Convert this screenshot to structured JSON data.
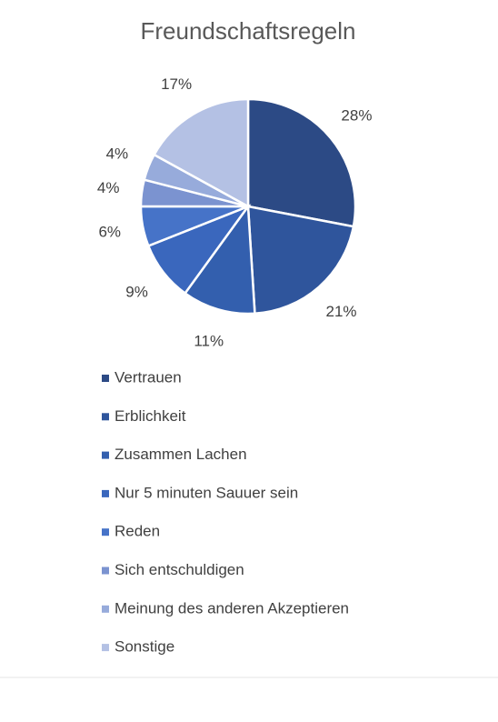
{
  "chart_data": {
    "type": "pie",
    "title": "Freundschaftsregeln",
    "categories": [
      "Vertrauen",
      "Erblichkeit",
      "Zusammen Lachen",
      "Nur 5 minuten Sauuer sein",
      "Reden",
      "Sich entschuldigen",
      "Meinung des anderen Akzeptieren",
      "Sonstige"
    ],
    "values": [
      28,
      21,
      11,
      9,
      6,
      4,
      4,
      17
    ],
    "value_labels": [
      "28%",
      "21%",
      "11%",
      "9%",
      "6%",
      "4%",
      "4%",
      "17%"
    ],
    "colors": [
      "#2c4a85",
      "#2f559c",
      "#335fae",
      "#3a67bd",
      "#4673c8",
      "#7b93d0",
      "#97abdb",
      "#b4c1e4"
    ],
    "legend": "bottom"
  }
}
